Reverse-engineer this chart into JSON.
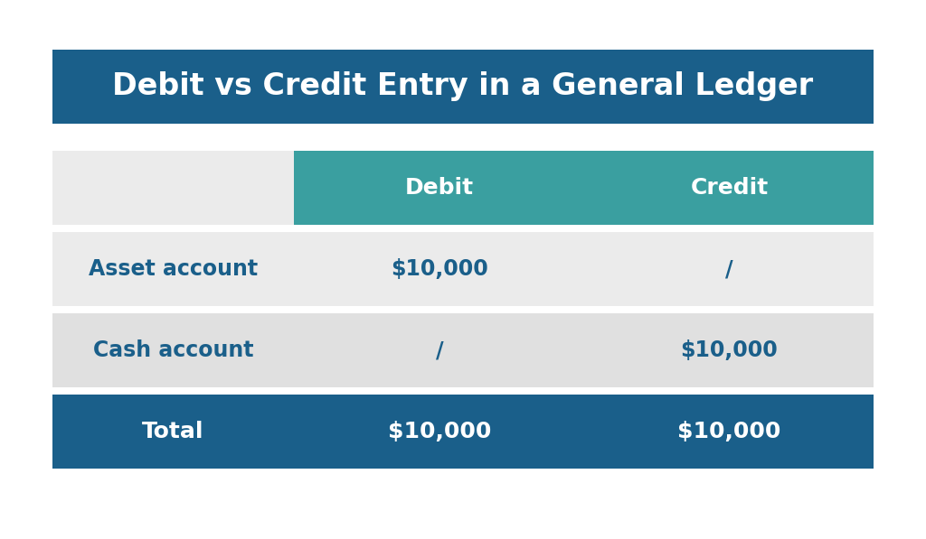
{
  "title": "Debit vs Credit Entry in a General Ledger",
  "title_bg_color": "#1a5f8a",
  "title_text_color": "#ffffff",
  "header_bg_color": "#3a9fa0",
  "header_text_color": "#ffffff",
  "row_bg_light": "#ebebeb",
  "row_bg_dark": "#e0e0e0",
  "footer_bg_color": "#1a5f8a",
  "footer_text_color": "#ffffff",
  "label_text_color": "#1a5f8a",
  "value_text_color": "#1a5f8a",
  "outer_bg": "#ffffff",
  "columns": [
    "",
    "Debit",
    "Credit"
  ],
  "rows": [
    [
      "Asset account",
      "$10,000",
      "/"
    ],
    [
      "Cash account",
      "/",
      "$10,000"
    ]
  ],
  "footer_row": [
    "Total",
    "$10,000",
    "$10,000"
  ],
  "title_fontsize": 24,
  "header_fontsize": 18,
  "cell_fontsize": 17,
  "footer_fontsize": 18
}
